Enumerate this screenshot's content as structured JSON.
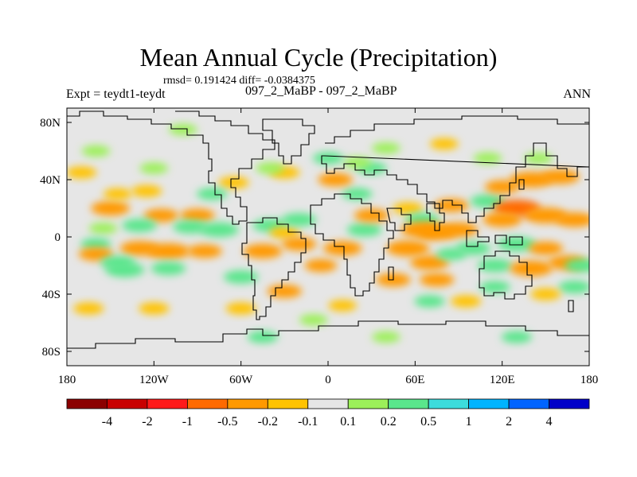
{
  "chart_data": {
    "type": "heatmap",
    "title": "Mean Annual Cycle (Precipitation)",
    "stats_text": "rmsd= 0.191424 diff= -0.0384375",
    "left_label": "Expt = teydt1-teydt",
    "center_label": "097_2_MaBP - 097_2_MaBP",
    "right_label": "ANN",
    "x_range": [
      -180,
      180
    ],
    "y_range": [
      -90,
      90
    ],
    "x_ticks": [
      {
        "value": -180,
        "label": "180"
      },
      {
        "value": -120,
        "label": "120W"
      },
      {
        "value": -60,
        "label": "60W"
      },
      {
        "value": 0,
        "label": "0"
      },
      {
        "value": 60,
        "label": "60E"
      },
      {
        "value": 120,
        "label": "120E"
      },
      {
        "value": 180,
        "label": "180"
      }
    ],
    "y_ticks": [
      {
        "value": 80,
        "label": "80N"
      },
      {
        "value": 40,
        "label": "40N"
      },
      {
        "value": 0,
        "label": "0"
      },
      {
        "value": -40,
        "label": "40S"
      },
      {
        "value": -80,
        "label": "80S"
      }
    ],
    "colorbar": {
      "colors": [
        "#8b0000",
        "#c80000",
        "#ff1a1a",
        "#ff6a00",
        "#ff9900",
        "#ffc300",
        "#e6e6e6",
        "#9cf05a",
        "#5ae68c",
        "#3cdcdc",
        "#00b4ff",
        "#0064ff",
        "#0000c8"
      ],
      "levels": [
        -4,
        -2,
        -1,
        -0.5,
        -0.2,
        -0.1,
        0.1,
        0.2,
        0.5,
        1,
        2,
        4
      ],
      "labels": [
        "-4",
        "-2",
        "-1",
        "-0.5",
        "-0.2",
        "-0.1",
        "0.1",
        "0.2",
        "0.5",
        "1",
        "2",
        "4"
      ]
    },
    "field": {
      "background_value": 0,
      "anomalies": [
        {
          "lon": -150,
          "lat": 20,
          "value": -0.4
        },
        {
          "lon": -115,
          "lat": 15,
          "value": -0.3
        },
        {
          "lon": -90,
          "lat": 15,
          "value": -0.3
        },
        {
          "lon": -130,
          "lat": 8,
          "value": 0.3
        },
        {
          "lon": -95,
          "lat": 7,
          "value": 0.3
        },
        {
          "lon": -155,
          "lat": 6,
          "value": 0.15
        },
        {
          "lon": -160,
          "lat": -5,
          "value": 0.2
        },
        {
          "lon": -130,
          "lat": -8,
          "value": -0.4
        },
        {
          "lon": -110,
          "lat": -10,
          "value": -0.5
        },
        {
          "lon": -160,
          "lat": -12,
          "value": -0.3
        },
        {
          "lon": -145,
          "lat": -18,
          "value": 0.3
        },
        {
          "lon": -140,
          "lat": -23,
          "value": 0.4
        },
        {
          "lon": -110,
          "lat": -22,
          "value": 0.3
        },
        {
          "lon": -85,
          "lat": -10,
          "value": -0.3
        },
        {
          "lon": -75,
          "lat": 5,
          "value": 0.4
        },
        {
          "lon": -40,
          "lat": 8,
          "value": 0.3
        },
        {
          "lon": -30,
          "lat": 3,
          "value": -0.2
        },
        {
          "lon": -20,
          "lat": 12,
          "value": 0.3
        },
        {
          "lon": -45,
          "lat": -10,
          "value": -0.4
        },
        {
          "lon": -20,
          "lat": -5,
          "value": -0.3
        },
        {
          "lon": -60,
          "lat": -28,
          "value": 0.3
        },
        {
          "lon": -30,
          "lat": -38,
          "value": -0.3
        },
        {
          "lon": 10,
          "lat": -8,
          "value": -0.4
        },
        {
          "lon": 25,
          "lat": 5,
          "value": 0.3
        },
        {
          "lon": 20,
          "lat": 30,
          "value": 0.2
        },
        {
          "lon": 5,
          "lat": 40,
          "value": -0.3
        },
        {
          "lon": 30,
          "lat": 48,
          "value": 0.2
        },
        {
          "lon": 55,
          "lat": 20,
          "value": -0.2
        },
        {
          "lon": 65,
          "lat": 12,
          "value": 0.3
        },
        {
          "lon": 65,
          "lat": 5,
          "value": -0.5
        },
        {
          "lon": 75,
          "lat": 3,
          "value": -0.4
        },
        {
          "lon": 90,
          "lat": 5,
          "value": -0.4
        },
        {
          "lon": 85,
          "lat": 22,
          "value": -0.3
        },
        {
          "lon": 110,
          "lat": 25,
          "value": 0.3
        },
        {
          "lon": 120,
          "lat": 35,
          "value": -0.3
        },
        {
          "lon": 140,
          "lat": 40,
          "value": -0.5
        },
        {
          "lon": 160,
          "lat": 42,
          "value": -0.4
        },
        {
          "lon": 130,
          "lat": 20,
          "value": -0.6
        },
        {
          "lon": 150,
          "lat": 15,
          "value": -0.5
        },
        {
          "lon": 170,
          "lat": 12,
          "value": -0.4
        },
        {
          "lon": 120,
          "lat": 12,
          "value": -0.4
        },
        {
          "lon": 55,
          "lat": -8,
          "value": -0.5
        },
        {
          "lon": 70,
          "lat": -18,
          "value": -0.4
        },
        {
          "lon": 85,
          "lat": -12,
          "value": 0.2
        },
        {
          "lon": 100,
          "lat": -8,
          "value": 0.3
        },
        {
          "lon": 130,
          "lat": -5,
          "value": 0.4
        },
        {
          "lon": 115,
          "lat": -20,
          "value": 0.3
        },
        {
          "lon": 150,
          "lat": -8,
          "value": -0.3
        },
        {
          "lon": 165,
          "lat": -18,
          "value": -0.4
        },
        {
          "lon": 140,
          "lat": -22,
          "value": -0.5
        },
        {
          "lon": 170,
          "lat": -35,
          "value": 0.25
        },
        {
          "lon": 150,
          "lat": -40,
          "value": -0.2
        },
        {
          "lon": 115,
          "lat": -35,
          "value": 0.2
        },
        {
          "lon": 75,
          "lat": -30,
          "value": -0.3
        },
        {
          "lon": 45,
          "lat": -30,
          "value": -0.3
        },
        {
          "lon": 95,
          "lat": -45,
          "value": -0.2
        },
        {
          "lon": 70,
          "lat": -45,
          "value": 0.2
        },
        {
          "lon": 175,
          "lat": -20,
          "value": 0.3
        },
        {
          "lon": 20,
          "lat": 52,
          "value": 0.15
        },
        {
          "lon": -120,
          "lat": 48,
          "value": 0.15
        },
        {
          "lon": -125,
          "lat": 32,
          "value": -0.2
        },
        {
          "lon": -170,
          "lat": 45,
          "value": -0.2
        },
        {
          "lon": -65,
          "lat": 38,
          "value": -0.2
        },
        {
          "lon": -80,
          "lat": 30,
          "value": 0.2
        },
        {
          "lon": -30,
          "lat": 45,
          "value": -0.2
        },
        {
          "lon": -40,
          "lat": 48,
          "value": 0.15
        },
        {
          "lon": 0,
          "lat": 55,
          "value": 0.2
        },
        {
          "lon": 40,
          "lat": 62,
          "value": 0.15
        },
        {
          "lon": 80,
          "lat": 65,
          "value": -0.15
        },
        {
          "lon": 110,
          "lat": 55,
          "value": 0.15
        },
        {
          "lon": -100,
          "lat": 75,
          "value": 0.15
        },
        {
          "lon": -160,
          "lat": 60,
          "value": 0.15
        },
        {
          "lon": -120,
          "lat": -50,
          "value": -0.2
        },
        {
          "lon": -60,
          "lat": -50,
          "value": -0.2
        },
        {
          "lon": 10,
          "lat": -48,
          "value": -0.15
        },
        {
          "lon": -45,
          "lat": -70,
          "value": 0.2
        },
        {
          "lon": 40,
          "lat": -70,
          "value": 0.15
        },
        {
          "lon": 130,
          "lat": -70,
          "value": 0.2
        },
        {
          "lon": -10,
          "lat": -58,
          "value": 0.15
        },
        {
          "lon": -165,
          "lat": -50,
          "value": -0.2
        },
        {
          "lon": 30,
          "lat": 15,
          "value": -0.3
        },
        {
          "lon": -5,
          "lat": -20,
          "value": -0.25
        },
        {
          "lon": -145,
          "lat": 30,
          "value": -0.15
        },
        {
          "lon": 145,
          "lat": 55,
          "value": 0.15
        }
      ]
    },
    "coastline_style": "black outline"
  }
}
